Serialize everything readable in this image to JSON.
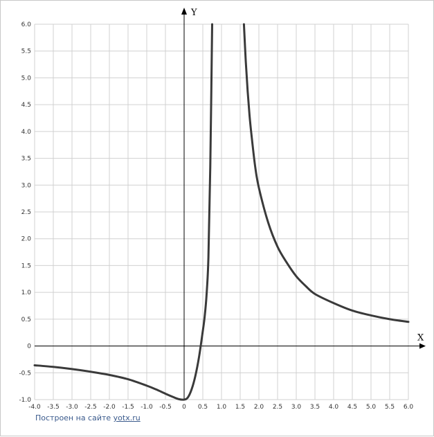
{
  "chart_data": {
    "type": "line",
    "title": "",
    "xlabel": "X",
    "ylabel": "Y",
    "xlim": [
      -4.0,
      6.0
    ],
    "ylim": [
      -1.0,
      6.0
    ],
    "grid": true,
    "x_step": 0.5,
    "y_step": 0.5,
    "x_tick_labels": [
      "-4.0",
      "-3.5",
      "-3.0",
      "-2.5",
      "-2.0",
      "-1.5",
      "-1.0",
      "-0.5",
      "0",
      "0.5",
      "1.0",
      "1.5",
      "2.0",
      "2.5",
      "3.0",
      "3.5",
      "4.0",
      "4.5",
      "5.0",
      "5.5",
      "6.0"
    ],
    "y_tick_labels": [
      "-1.0",
      "-0.5",
      "0",
      "0.5",
      "1.0",
      "1.5",
      "2.0",
      "2.5",
      "3.0",
      "3.5",
      "4.0",
      "4.5",
      "5.0",
      "5.5",
      "6.0"
    ],
    "series": [
      {
        "segments": [
          {
            "x": [
              -4.0,
              -3.5,
              -3.0,
              -2.5,
              -2.0,
              -1.5,
              -1.0,
              -0.75,
              -0.5,
              -0.3,
              -0.15,
              0.0,
              0.1,
              0.2,
              0.3,
              0.4,
              0.5,
              0.55,
              0.6,
              0.65,
              0.7,
              0.75
            ],
            "y": [
              -0.36,
              -0.39,
              -0.43,
              -0.48,
              -0.54,
              -0.62,
              -0.74,
              -0.81,
              -0.89,
              -0.95,
              -0.99,
              -1.0,
              -0.96,
              -0.81,
              -0.56,
              -0.2,
              0.28,
              0.55,
              0.95,
              1.65,
              3.35,
              6.0
            ]
          },
          {
            "x": [
              1.6,
              1.65,
              1.7,
              1.75,
              1.8,
              1.9,
              2.0,
              2.25,
              2.5,
              2.75,
              3.0,
              3.25,
              3.5,
              4.0,
              4.5,
              5.0,
              5.5,
              6.0
            ],
            "y": [
              6.0,
              5.3,
              4.75,
              4.3,
              3.95,
              3.35,
              2.95,
              2.3,
              1.85,
              1.55,
              1.3,
              1.12,
              0.97,
              0.8,
              0.66,
              0.57,
              0.5,
              0.45
            ]
          }
        ]
      }
    ],
    "line_color": "#3a3a3a",
    "grid_color": "#d0d0d0"
  },
  "footer": {
    "credit_text": "Построен на сайте ",
    "credit_link": "yotx.ru"
  }
}
